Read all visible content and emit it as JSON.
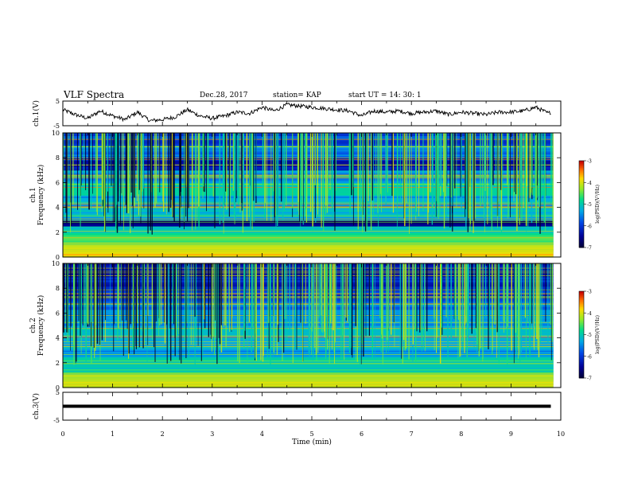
{
  "header": {
    "title": "VLF Spectra",
    "date": "Dec.28, 2017",
    "station": "station= KAP",
    "start_ut": "start  UT =   14: 30: 1"
  },
  "chart_data": [
    {
      "id": "ch1-waveform",
      "type": "line",
      "ylabel": "ch.1(V)",
      "ylim": [
        -5,
        5
      ],
      "yticks": [
        "5",
        "-5"
      ],
      "xlim": [
        0,
        10
      ],
      "x": [
        0,
        0.25,
        0.5,
        0.75,
        1,
        1.25,
        1.5,
        1.75,
        2,
        2.25,
        2.5,
        2.75,
        3,
        3.25,
        3.5,
        3.75,
        4,
        4.25,
        4.5,
        4.75,
        5,
        5.25,
        5.5,
        5.75,
        6,
        6.25,
        6.5,
        6.75,
        7,
        7.25,
        7.5,
        7.75,
        8,
        8.25,
        8.5,
        8.75,
        9,
        9.25,
        9.5,
        9.75,
        9.8
      ],
      "values": [
        1.5,
        -0.5,
        -2.0,
        1.0,
        -1.0,
        -2.5,
        0.5,
        -3.0,
        -2.5,
        -1.5,
        1.5,
        -1.0,
        -2.0,
        -1.0,
        0.5,
        0.0,
        2.5,
        1.0,
        3.5,
        3.0,
        2.5,
        2.0,
        1.5,
        1.0,
        -1.0,
        1.0,
        0.5,
        1.0,
        0.0,
        0.5,
        1.0,
        -0.5,
        0.5,
        0.0,
        -0.5,
        0.5,
        0.5,
        1.0,
        2.5,
        0.0,
        0.5
      ]
    },
    {
      "id": "ch1-spectrogram",
      "type": "heatmap",
      "ylabel": "ch.1\nFrequency (kHz)",
      "ylabel_lines": [
        "ch.1",
        "Frequency  (kHz)"
      ],
      "ylim": [
        0,
        10
      ],
      "yticks": [
        "0",
        "2",
        "4",
        "6",
        "8",
        "10"
      ],
      "xlim": [
        0,
        10
      ],
      "data_extent_x": [
        0,
        9.85
      ],
      "colorbar": {
        "label": "log(PSD)(V²/Hz)",
        "range": [
          -7,
          -3
        ],
        "ticks": [
          "-3",
          "-4",
          "-5",
          "-6",
          "-7"
        ]
      },
      "bands_khz_level": [
        [
          0.5,
          -3.8
        ],
        [
          1.0,
          -4.2
        ],
        [
          1.5,
          -4.6
        ],
        [
          2.0,
          -4.7
        ],
        [
          2.5,
          -5.0
        ],
        [
          3.0,
          -6.6
        ],
        [
          3.5,
          -5.2
        ],
        [
          4.5,
          -5.3
        ],
        [
          5.5,
          -5.0
        ],
        [
          6.5,
          -5.4
        ],
        [
          7.5,
          -6.2
        ],
        [
          8.5,
          -5.6
        ],
        [
          9.5,
          -5.9
        ]
      ]
    },
    {
      "id": "ch2-spectrogram",
      "type": "heatmap",
      "ylabel": "ch.2\nFrequency (kHz)",
      "ylabel_lines": [
        "ch.2",
        "Frequency  (kHz)"
      ],
      "ylim": [
        0,
        10
      ],
      "yticks": [
        "0",
        "2",
        "4",
        "6",
        "8",
        "10"
      ],
      "xlim": [
        0,
        10
      ],
      "data_extent_x": [
        0,
        9.85
      ],
      "colorbar": {
        "label": "log(PSD)(V²/Hz)",
        "range": [
          -7,
          -3
        ],
        "ticks": [
          "-3",
          "-4",
          "-5",
          "-6",
          "-7"
        ]
      },
      "bands_khz_level": [
        [
          0.5,
          -4.0
        ],
        [
          1.0,
          -4.4
        ],
        [
          1.5,
          -4.8
        ],
        [
          2.0,
          -4.9
        ],
        [
          2.5,
          -5.1
        ],
        [
          3.0,
          -5.6
        ],
        [
          3.5,
          -5.3
        ],
        [
          4.5,
          -5.2
        ],
        [
          5.5,
          -5.5
        ],
        [
          6.5,
          -5.6
        ],
        [
          7.5,
          -6.0
        ],
        [
          8.5,
          -6.2
        ],
        [
          9.5,
          -6.3
        ]
      ]
    },
    {
      "id": "ch3-waveform",
      "type": "line",
      "ylabel": "ch.3(V)",
      "ylim": [
        -5,
        5
      ],
      "yticks": [
        "5",
        "-5"
      ],
      "xlim": [
        0,
        10
      ],
      "xticks": [
        "0",
        "1",
        "2",
        "3",
        "4",
        "5",
        "6",
        "7",
        "8",
        "9",
        "10"
      ],
      "xlabel": "Time  (min)",
      "x": [
        0,
        9.8
      ],
      "values": [
        0,
        0
      ]
    }
  ]
}
